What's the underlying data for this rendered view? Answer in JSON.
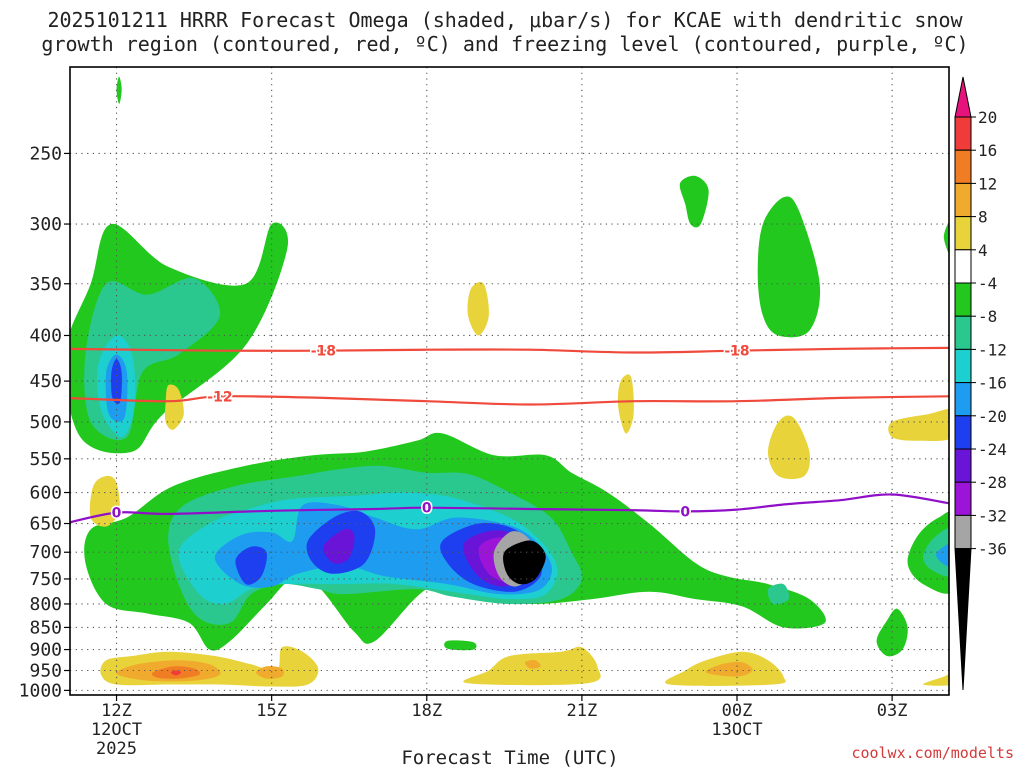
{
  "header": {
    "title_line1": "2025101211 HRRR Forecast Omega (shaded, μbar/s) for KCAE with dendritic snow",
    "title_line2": "growth region (contoured, red, ºC) and freezing level (contoured, purple, ºC)"
  },
  "footer": {
    "xlabel": "Forecast Time (UTC)",
    "credit": "coolwx.com/modelts"
  },
  "chart_data": {
    "type": "heatmap",
    "title": "2025101211 HRRR Forecast Omega (shaded, μbar/s) for KCAE with dendritic snow growth region (contoured, red, ºC) and freezing level (contoured, purple, ºC)",
    "xlabel": "Forecast Time (UTC)",
    "ylabel": "",
    "x_range_hours_from_12Z": [
      -0.9,
      16.1
    ],
    "y_range_hPa": [
      1012,
      200
    ],
    "y_ticks": [
      250,
      300,
      350,
      400,
      450,
      500,
      550,
      600,
      650,
      700,
      750,
      800,
      850,
      900,
      950,
      1000
    ],
    "x_ticks": [
      {
        "h": 0,
        "label": "12Z",
        "sub1": "12OCT",
        "sub2": "2025"
      },
      {
        "h": 3,
        "label": "15Z",
        "sub1": "",
        "sub2": ""
      },
      {
        "h": 6,
        "label": "18Z",
        "sub1": "",
        "sub2": ""
      },
      {
        "h": 9,
        "label": "21Z",
        "sub1": "",
        "sub2": ""
      },
      {
        "h": 12,
        "label": "00Z",
        "sub1": "13OCT",
        "sub2": ""
      },
      {
        "h": 15,
        "label": "03Z",
        "sub1": "",
        "sub2": ""
      }
    ],
    "colorbar": {
      "labels": [
        "20",
        "16",
        "12",
        "8",
        "4",
        "-4",
        "-8",
        "-12",
        "-16",
        "-20",
        "-24",
        "-28",
        "-32",
        "-36"
      ],
      "colors": [
        "#e8127d",
        "#ef3b39",
        "#f07d23",
        "#f0aa2d",
        "#e8d33a",
        "#ffffff",
        "#22c81e",
        "#2ac78f",
        "#1ecfd0",
        "#1e9cf0",
        "#1e3ff0",
        "#6a14d8",
        "#9c14d8",
        "#a5a5a5",
        "#000000"
      ]
    },
    "contours": [
      {
        "name": "-18C",
        "label": "-18",
        "color": "#ef4a3c",
        "h": [
          -1,
          2,
          4,
          6,
          8,
          10,
          12,
          14,
          16.1
        ],
        "p": [
          414,
          416,
          416,
          415,
          415,
          418,
          416,
          414,
          413
        ],
        "labels_at_h": [
          4,
          12
        ]
      },
      {
        "name": "-12C",
        "label": "-12",
        "color": "#ef4a3c",
        "h": [
          -1,
          1,
          2,
          4,
          6,
          8,
          10,
          12,
          14,
          16.1
        ],
        "p": [
          470,
          474,
          468,
          470,
          474,
          478,
          474,
          474,
          470,
          468
        ],
        "labels_at_h": [
          2
        ]
      },
      {
        "name": "0C",
        "label": "0",
        "color": "#9010c8",
        "h": [
          -1,
          0,
          1,
          3,
          5,
          6,
          8,
          10,
          11,
          12,
          13,
          14,
          15,
          16.1
        ],
        "p": [
          650,
          632,
          634,
          629,
          626,
          624,
          626,
          628,
          630,
          627,
          618,
          612,
          603,
          617
        ],
        "labels_at_h": [
          0,
          6,
          11
        ]
      }
    ],
    "omega_features": [
      {
        "name": "west upward column",
        "center_h": 0.2,
        "center_p": 470,
        "min_value": -20,
        "levels": [
          -4,
          -8,
          -12,
          -16,
          -20
        ]
      },
      {
        "name": "main upward band",
        "center_h": 6.5,
        "center_p": 700,
        "min_value": -36,
        "levels": [
          -4,
          -8,
          -12,
          -16,
          -20,
          -24,
          -28,
          -32,
          -36
        ]
      },
      {
        "name": "upper-level upward cells",
        "center_h": 13.2,
        "center_p": 330,
        "min_value": -8,
        "levels": [
          -4
        ]
      },
      {
        "name": "east edge upward cell",
        "center_h": 15.8,
        "center_p": 705,
        "min_value": -20,
        "levels": [
          -4,
          -8,
          -12,
          -16,
          -20
        ]
      },
      {
        "name": "low-level downward band",
        "center_h": 1.1,
        "center_p": 950,
        "max_value": 16,
        "levels": [
          4,
          8,
          12,
          16
        ]
      },
      {
        "name": "scattered downward cells",
        "center_h": 9.5,
        "center_p": 945,
        "max_value": 8,
        "levels": [
          4,
          8
        ]
      }
    ]
  },
  "colors": {
    "ground": "#9c5224",
    "title_text": "#222222",
    "credit_text": "#d23a3a"
  }
}
